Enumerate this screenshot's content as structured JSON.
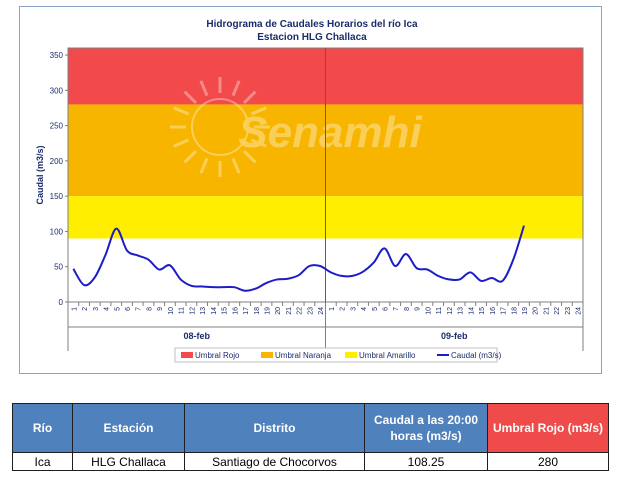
{
  "chart_data": {
    "type": "line",
    "title": "Hidrograma de Caudales Horarios del río Ica",
    "subtitle": "Estacion HLG Challaca",
    "ylabel": "Caudal  (m3/s)",
    "ylim": [
      0,
      360
    ],
    "yticks": [
      0,
      50,
      100,
      150,
      200,
      250,
      300,
      350
    ],
    "watermark": "Senamhi",
    "days": [
      {
        "label": "08-feb",
        "hours": [
          "1",
          "2",
          "3",
          "4",
          "5",
          "6",
          "7",
          "8",
          "9",
          "10",
          "11",
          "12",
          "13",
          "14",
          "15",
          "16",
          "17",
          "18",
          "19",
          "20",
          "21",
          "22",
          "23",
          "24"
        ]
      },
      {
        "label": "09-feb",
        "hours": [
          "1",
          "2",
          "3",
          "4",
          "5",
          "6",
          "7",
          "8",
          "9",
          "10",
          "11",
          "12",
          "13",
          "14",
          "15",
          "16",
          "17",
          "18",
          "19",
          "20",
          "21",
          "22",
          "23",
          "24"
        ]
      }
    ],
    "thresholds": [
      {
        "name": "Umbral Rojo",
        "from": 280,
        "to": 360,
        "color": "#f24a4a"
      },
      {
        "name": "Umbral Naranja",
        "from": 150,
        "to": 280,
        "color": "#f7b500"
      },
      {
        "name": "Umbral Amarillo",
        "from": 90,
        "to": 150,
        "color": "#ffee00"
      }
    ],
    "series": [
      {
        "name": "Caudal (m3/s)",
        "color": "#1c1cc8",
        "values": [
          47,
          24,
          35,
          67,
          104,
          73,
          66,
          60,
          46,
          52,
          32,
          23,
          22,
          21,
          21,
          21,
          16,
          19,
          27,
          32,
          33,
          38,
          51,
          51,
          42,
          37,
          37,
          43,
          56,
          76,
          51,
          68,
          48,
          46,
          37,
          32,
          32,
          42,
          30,
          34,
          30,
          60,
          108.25
        ]
      }
    ]
  },
  "legend": {
    "items": [
      {
        "label": "Umbral Rojo",
        "color": "#f24a4a",
        "kind": "swatch"
      },
      {
        "label": "Umbral Naranja",
        "color": "#f7b500",
        "kind": "swatch"
      },
      {
        "label": "Umbral Amarillo",
        "color": "#ffee00",
        "kind": "swatch"
      },
      {
        "label": "Caudal (m3/s)",
        "color": "#1c1cc8",
        "kind": "line"
      }
    ]
  },
  "table": {
    "headers": {
      "rio": "Río",
      "estacion": "Estación",
      "distrito": "Distrito",
      "caudal": "Caudal a las 20:00 horas (m3/s)",
      "umbral": "Umbral Rojo (m3/s)"
    },
    "row": {
      "rio": "Ica",
      "estacion": "HLG Challaca",
      "distrito": "Santiago de Chocorvos",
      "caudal": "108.25",
      "umbral": "280"
    }
  }
}
